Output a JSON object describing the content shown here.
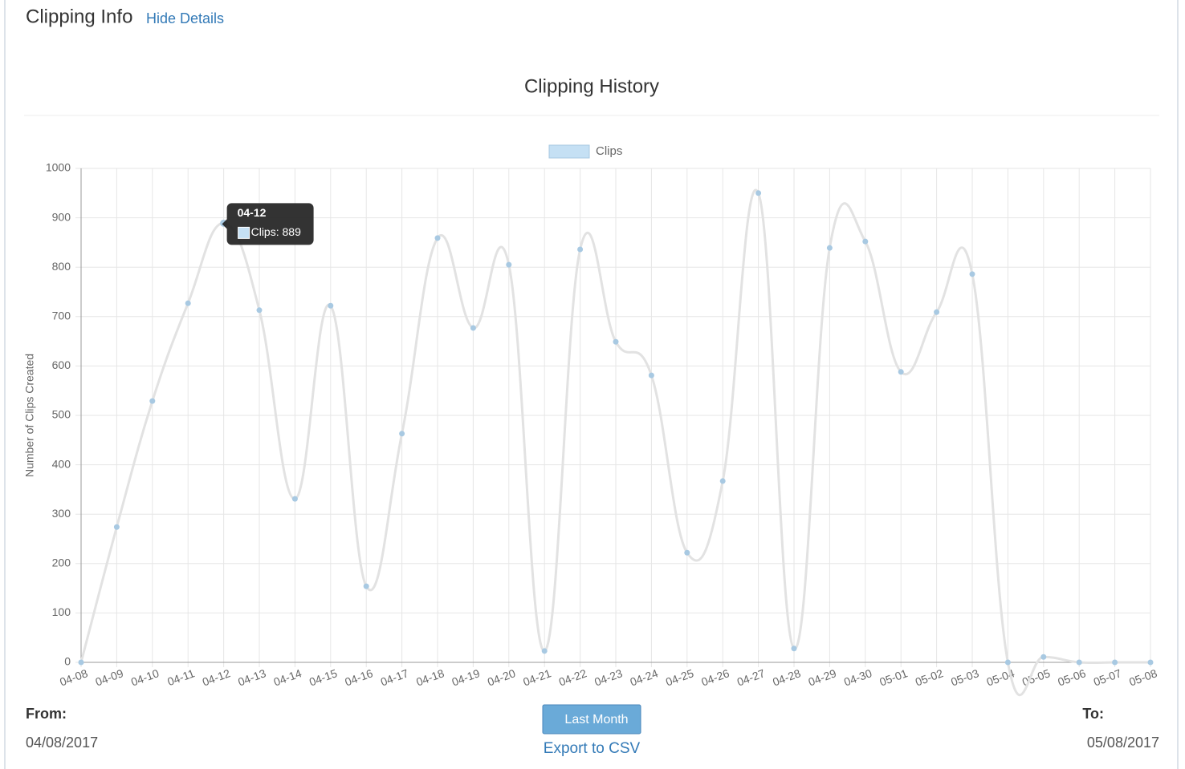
{
  "header": {
    "title": "Clipping Info",
    "link": "Hide Details"
  },
  "chart_data": {
    "type": "line",
    "title": "Clipping History",
    "y_label": "Number of Clips Created",
    "categories": [
      "04-08",
      "04-09",
      "04-10",
      "04-11",
      "04-12",
      "04-13",
      "04-14",
      "04-15",
      "04-16",
      "04-17",
      "04-18",
      "04-19",
      "04-20",
      "04-21",
      "04-22",
      "04-23",
      "04-24",
      "04-25",
      "04-26",
      "04-27",
      "04-28",
      "04-29",
      "04-30",
      "05-01",
      "05-02",
      "05-03",
      "05-04",
      "05-05",
      "05-06",
      "05-07",
      "05-08"
    ],
    "series": [
      {
        "name": "Clips",
        "color": "#e2e2e2",
        "point_color": "#a8c9e2",
        "values": [
          0,
          274,
          529,
          727,
          889,
          713,
          331,
          722,
          154,
          463,
          859,
          677,
          805,
          23,
          836,
          649,
          581,
          222,
          367,
          950,
          28,
          839,
          852,
          588,
          709,
          786,
          0,
          11,
          0,
          0,
          0
        ]
      }
    ],
    "ylim": [
      0,
      1000
    ],
    "yticks": [
      0,
      100,
      200,
      300,
      400,
      500,
      600,
      700,
      800,
      900,
      1000
    ],
    "grid": true,
    "legend": "top",
    "tooltip": {
      "title": "04-12",
      "text": "Clips: 889"
    }
  },
  "footer": {
    "from_label": "From:",
    "from_date": "04/08/2017",
    "button": "Last Month",
    "export": "Export to CSV",
    "to_label": "To:",
    "to_date": "05/08/2017"
  }
}
